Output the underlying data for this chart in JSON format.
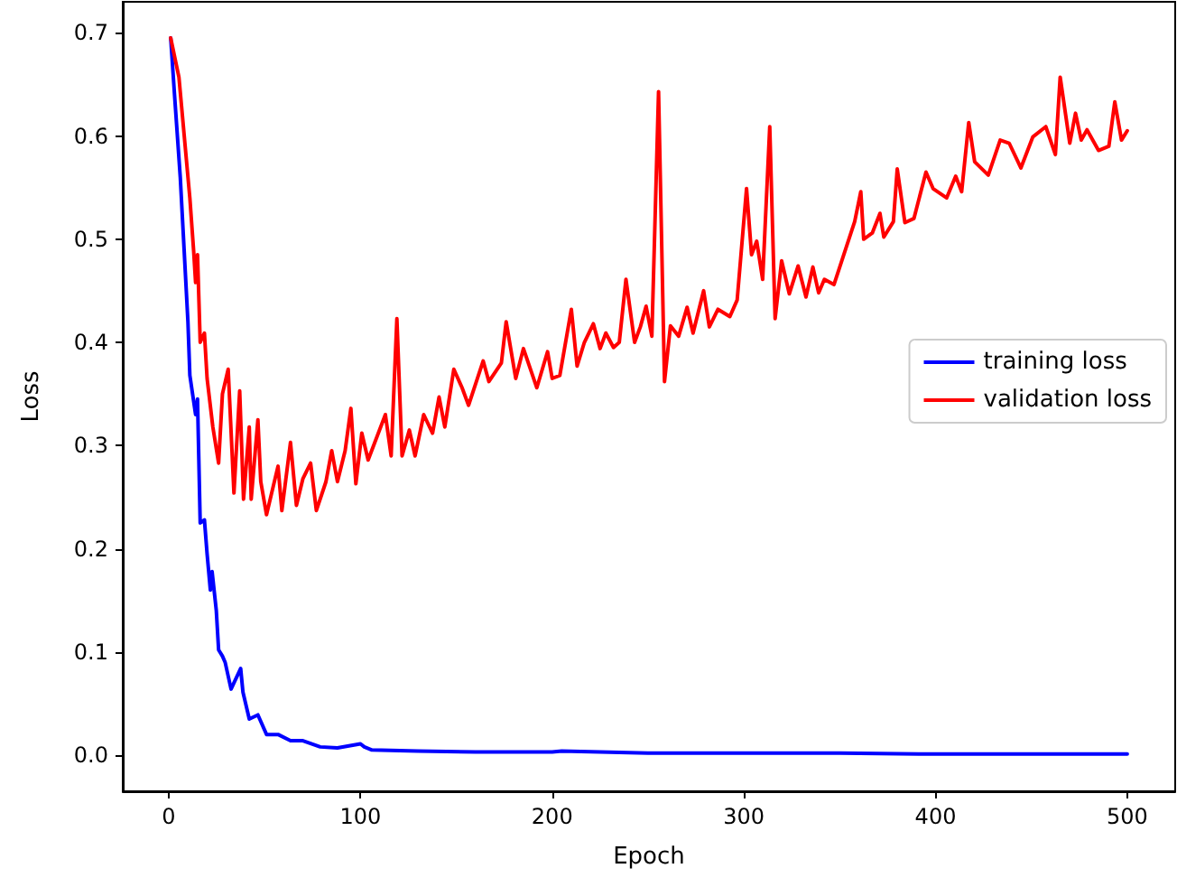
{
  "chart_data": {
    "type": "line",
    "xlabel": "Epoch",
    "ylabel": "Loss",
    "xlim": [
      -24,
      525
    ],
    "xticks": [
      0,
      100,
      200,
      300,
      400,
      500
    ],
    "ylim": [
      -0.035,
      0.73
    ],
    "yticks": [
      {
        "value": 0,
        "label": "0.0"
      },
      0.1,
      0.2,
      0.3,
      0.4,
      0.5,
      0.6,
      0.7
    ],
    "grid": false,
    "legend": "right",
    "marker": "none",
    "line_style": "solid",
    "series": [
      {
        "name": "training loss",
        "color": "#0000ff",
        "x": [
          1,
          3,
          6,
          8,
          10,
          11,
          14,
          15,
          16.4,
          18.6,
          20,
          21.7,
          22.6,
          24.8,
          26,
          28,
          29.4,
          32.5,
          37.5,
          38.7,
          42,
          46.5,
          51,
          57,
          63.5,
          70,
          79,
          88,
          100,
          102,
          106,
          130,
          160,
          200,
          205,
          250,
          300,
          350,
          400,
          450,
          500
        ],
        "values": [
          0.695,
          0.64,
          0.56,
          0.49,
          0.42,
          0.368,
          0.33,
          0.345,
          0.225,
          0.228,
          0.195,
          0.16,
          0.178,
          0.14,
          0.102,
          0.096,
          0.09,
          0.064,
          0.084,
          0.061,
          0.035,
          0.039,
          0.02,
          0.02,
          0.014,
          0.014,
          0.008,
          0.007,
          0.011,
          0.008,
          0.005,
          0.004,
          0.003,
          0.003,
          0.004,
          0.002,
          0.002,
          0.002,
          0.001,
          0.001,
          0.001
        ]
      },
      {
        "name": "validation loss",
        "color": "#ff0000",
        "x": [
          1,
          5.3,
          11,
          13,
          14,
          15,
          16.4,
          18.6,
          20,
          23,
          26,
          28,
          31,
          34,
          37,
          39,
          42,
          43,
          46.5,
          48,
          51,
          57,
          59,
          63.5,
          66.6,
          70,
          74,
          77,
          82,
          85,
          88,
          92,
          95,
          97.6,
          100.7,
          104,
          113,
          116,
          119,
          121.7,
          125.5,
          128.5,
          133,
          137.6,
          141,
          144,
          148.7,
          153,
          156.4,
          164,
          167,
          173.5,
          176,
          181,
          185,
          192,
          197.6,
          200,
          204,
          210,
          213,
          216.8,
          221.5,
          225,
          228,
          232,
          235,
          238.5,
          243,
          246,
          249,
          252,
          255.5,
          258.6,
          261.7,
          266,
          270.4,
          273.5,
          279,
          282,
          286.5,
          292.7,
          296.5,
          301.4,
          304,
          306.7,
          309.8,
          313.5,
          316.3,
          319.7,
          323.7,
          328.3,
          332.4,
          336,
          339,
          342,
          347,
          351.6,
          357.8,
          361,
          362.5,
          367,
          371,
          373,
          378,
          380,
          384,
          388.7,
          395,
          398.7,
          405.8,
          410.5,
          413.6,
          417.3,
          420.4,
          427.5,
          433.7,
          438.4,
          444.5,
          450.7,
          457.5,
          462.5,
          465,
          470,
          473,
          476,
          479,
          485,
          490.4,
          493.5,
          497,
          500
        ],
        "values": [
          0.695,
          0.657,
          0.54,
          0.488,
          0.458,
          0.485,
          0.4,
          0.409,
          0.365,
          0.318,
          0.283,
          0.35,
          0.374,
          0.254,
          0.353,
          0.248,
          0.318,
          0.248,
          0.325,
          0.265,
          0.233,
          0.28,
          0.237,
          0.303,
          0.242,
          0.268,
          0.283,
          0.237,
          0.265,
          0.295,
          0.265,
          0.295,
          0.336,
          0.263,
          0.312,
          0.286,
          0.33,
          0.29,
          0.423,
          0.29,
          0.315,
          0.29,
          0.33,
          0.312,
          0.347,
          0.318,
          0.374,
          0.356,
          0.339,
          0.382,
          0.362,
          0.38,
          0.42,
          0.365,
          0.394,
          0.356,
          0.391,
          0.365,
          0.368,
          0.432,
          0.377,
          0.4,
          0.418,
          0.394,
          0.409,
          0.395,
          0.4,
          0.461,
          0.4,
          0.415,
          0.435,
          0.406,
          0.643,
          0.362,
          0.416,
          0.406,
          0.434,
          0.409,
          0.45,
          0.415,
          0.432,
          0.425,
          0.441,
          0.549,
          0.485,
          0.498,
          0.461,
          0.609,
          0.423,
          0.479,
          0.447,
          0.474,
          0.444,
          0.473,
          0.448,
          0.461,
          0.456,
          0.482,
          0.517,
          0.546,
          0.5,
          0.506,
          0.525,
          0.502,
          0.517,
          0.568,
          0.516,
          0.52,
          0.565,
          0.549,
          0.54,
          0.561,
          0.546,
          0.613,
          0.575,
          0.562,
          0.596,
          0.593,
          0.569,
          0.599,
          0.609,
          0.582,
          0.657,
          0.593,
          0.622,
          0.596,
          0.606,
          0.586,
          0.59,
          0.633,
          0.596,
          0.605
        ]
      }
    ]
  }
}
